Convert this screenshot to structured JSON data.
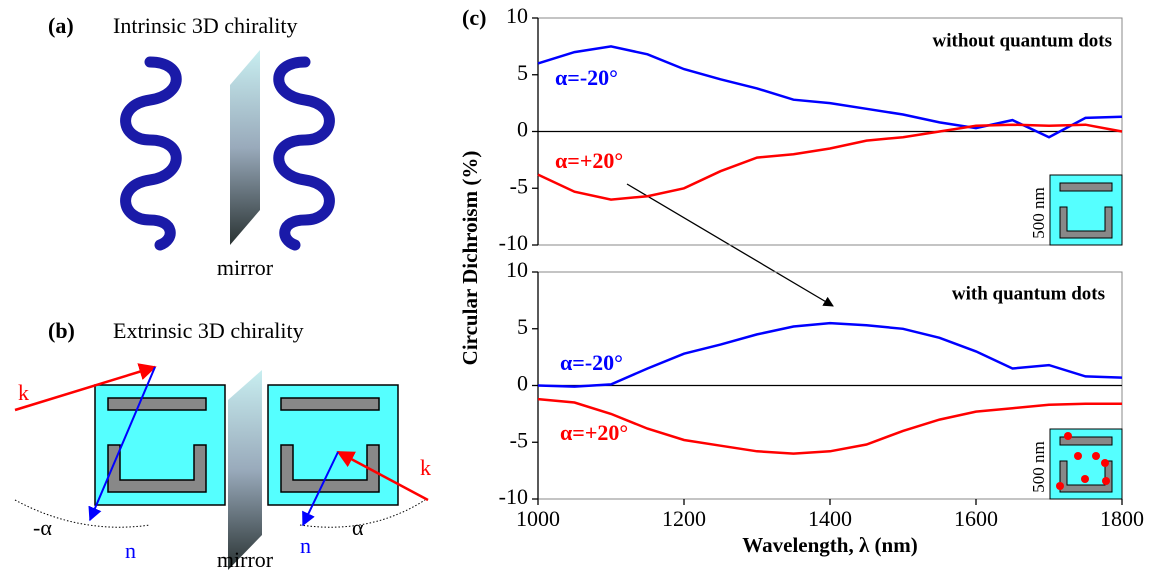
{
  "panel_a": {
    "label": "(a)",
    "title": "Intrinsic 3D chirality",
    "mirror": "mirror"
  },
  "panel_b": {
    "label": "(b)",
    "title": "Extrinsic 3D chirality",
    "mirror": "mirror",
    "k_left": "k",
    "k_right": "k",
    "n_left": "n",
    "n_right": "n",
    "angle_left": "-α",
    "angle_right": "α"
  },
  "panel_c": {
    "label": "(c)",
    "ylabel": "Circular Dichroism (%)"
  },
  "chart_data": [
    {
      "type": "line",
      "title": "without quantum dots",
      "inset_label": "500 nm",
      "x": [
        1000,
        1050,
        1100,
        1150,
        1200,
        1250,
        1300,
        1350,
        1400,
        1450,
        1500,
        1550,
        1600,
        1650,
        1700,
        1750,
        1800
      ],
      "series": [
        {
          "name": "α=-20°",
          "color": "#0000ff",
          "values": [
            6.0,
            7.0,
            7.5,
            6.8,
            5.5,
            4.6,
            3.8,
            2.8,
            2.5,
            2.0,
            1.5,
            0.8,
            0.3,
            1.0,
            -0.5,
            1.2,
            1.3
          ]
        },
        {
          "name": "α=+20°",
          "color": "#ff0000",
          "values": [
            -3.8,
            -5.3,
            -6.0,
            -5.7,
            -5.0,
            -3.5,
            -2.3,
            -2.0,
            -1.5,
            -0.8,
            -0.5,
            0,
            0.5,
            0.6,
            0.5,
            0.6,
            0
          ]
        }
      ],
      "xlim": [
        1000,
        1800
      ],
      "ylim": [
        -10,
        10
      ],
      "yticks": [
        -10,
        -5,
        0,
        5,
        10
      ]
    },
    {
      "type": "line",
      "title": "with quantum dots",
      "inset_label": "500 nm",
      "xlabel": "Wavelength, λ (nm)",
      "x": [
        1000,
        1050,
        1100,
        1150,
        1200,
        1250,
        1300,
        1350,
        1400,
        1450,
        1500,
        1550,
        1600,
        1650,
        1700,
        1750,
        1800
      ],
      "series": [
        {
          "name": "α=-20°",
          "color": "#0000ff",
          "values": [
            0,
            -0.1,
            0.1,
            1.5,
            2.8,
            3.6,
            4.5,
            5.2,
            5.5,
            5.3,
            5.0,
            4.2,
            3.0,
            1.5,
            1.8,
            0.8,
            0.7
          ]
        },
        {
          "name": "α=+20°",
          "color": "#ff0000",
          "values": [
            -1.2,
            -1.5,
            -2.5,
            -3.8,
            -4.8,
            -5.3,
            -5.8,
            -6.0,
            -5.8,
            -5.2,
            -4.0,
            -3.0,
            -2.3,
            -2.0,
            -1.7,
            -1.6,
            -1.6
          ]
        }
      ],
      "xlim": [
        1000,
        1800
      ],
      "xticks": [
        1000,
        1200,
        1400,
        1600,
        1800
      ],
      "ylim": [
        -10,
        10
      ],
      "yticks": [
        -10,
        -5,
        0,
        5,
        10
      ]
    }
  ]
}
